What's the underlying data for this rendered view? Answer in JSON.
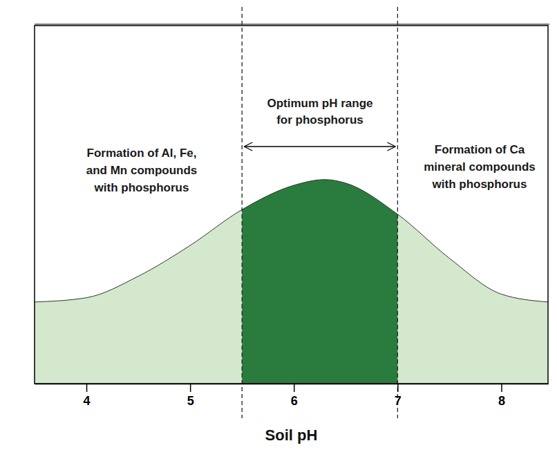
{
  "chart_data": {
    "type": "area",
    "xlabel": "Soil pH",
    "x": [
      3.5,
      4,
      4.5,
      5,
      5.5,
      6,
      6.3,
      6.5,
      7,
      7.5,
      8,
      8.45
    ],
    "values": [
      22.8,
      24,
      30,
      38.6,
      48.6,
      55.4,
      57,
      56,
      47.3,
      35,
      25,
      22.8
    ],
    "xlim": [
      3.5,
      8.45
    ],
    "xticks": [
      4,
      5,
      6,
      7,
      8
    ],
    "ylim": [
      0,
      100
    ],
    "tick_labels": "x",
    "colors": [
      "#d3e8cc",
      "#2a7b3e"
    ],
    "optimum_range": [
      5.5,
      7
    ],
    "annotations": [
      {
        "lines": [
          "Formation of Al, Fe,",
          "and Mn compounds",
          "with phosphorus"
        ]
      },
      {
        "lines": [
          "Optimum pH range",
          "for phosphorus"
        ]
      },
      {
        "lines": [
          "Formation of Ca",
          "mineral compounds",
          "with phosphorus"
        ]
      }
    ]
  }
}
